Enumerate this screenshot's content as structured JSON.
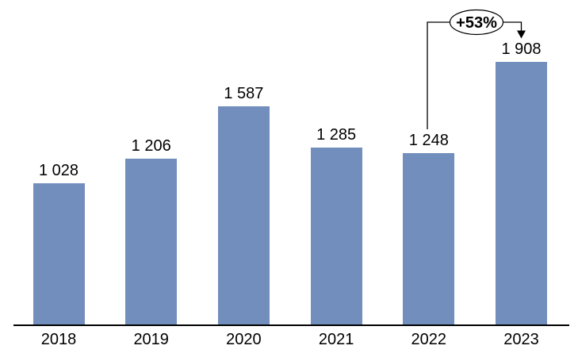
{
  "chart_data": {
    "type": "bar",
    "title": "",
    "xlabel": "",
    "ylabel": "",
    "categories": [
      "2018",
      "2019",
      "2020",
      "2021",
      "2022",
      "2023"
    ],
    "values": [
      1028,
      1206,
      1587,
      1285,
      1248,
      1908
    ],
    "value_labels": [
      "1 028",
      "1 206",
      "1 587",
      "1 285",
      "1 248",
      "1 908"
    ],
    "ylim": [
      0,
      2000
    ],
    "grid": false,
    "legend": false,
    "bar_color": "#728ebd",
    "axis_color": "#000000",
    "label_color": "#000000",
    "annotation": {
      "label": "+53%",
      "from_category": "2022",
      "to_category": "2023",
      "shape": "ellipse",
      "ellipse_fill": "#ffffff",
      "line_color": "#000000"
    }
  }
}
